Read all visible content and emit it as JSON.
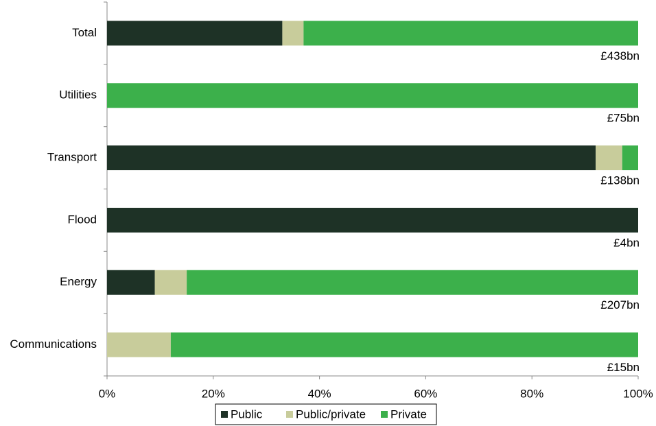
{
  "chart_data": {
    "type": "stacked_barh",
    "categories": [
      "Total",
      "Utilities",
      "Transport",
      "Flood",
      "Energy",
      "Communications"
    ],
    "series": [
      {
        "name": "Public",
        "color": "#1e3226",
        "values": [
          33,
          0,
          92,
          100,
          9,
          0
        ]
      },
      {
        "name": "Public/private",
        "color": "#c8cc9b",
        "values": [
          4,
          0,
          5,
          0,
          6,
          12
        ]
      },
      {
        "name": "Private",
        "color": "#3cb04b",
        "values": [
          63,
          100,
          3,
          0,
          85,
          88
        ]
      }
    ],
    "annotations": [
      "£438bn",
      "£75bn",
      "£138bn",
      "£4bn",
      "£207bn",
      "£15bn"
    ],
    "xlim": [
      0,
      100
    ],
    "xticks": [
      {
        "value": 0,
        "label": "0%"
      },
      {
        "value": 20,
        "label": "20%"
      },
      {
        "value": 40,
        "label": "40%"
      },
      {
        "value": 60,
        "label": "60%"
      },
      {
        "value": 80,
        "label": "80%"
      },
      {
        "value": 100,
        "label": "100%"
      }
    ],
    "legend": "bottom"
  }
}
